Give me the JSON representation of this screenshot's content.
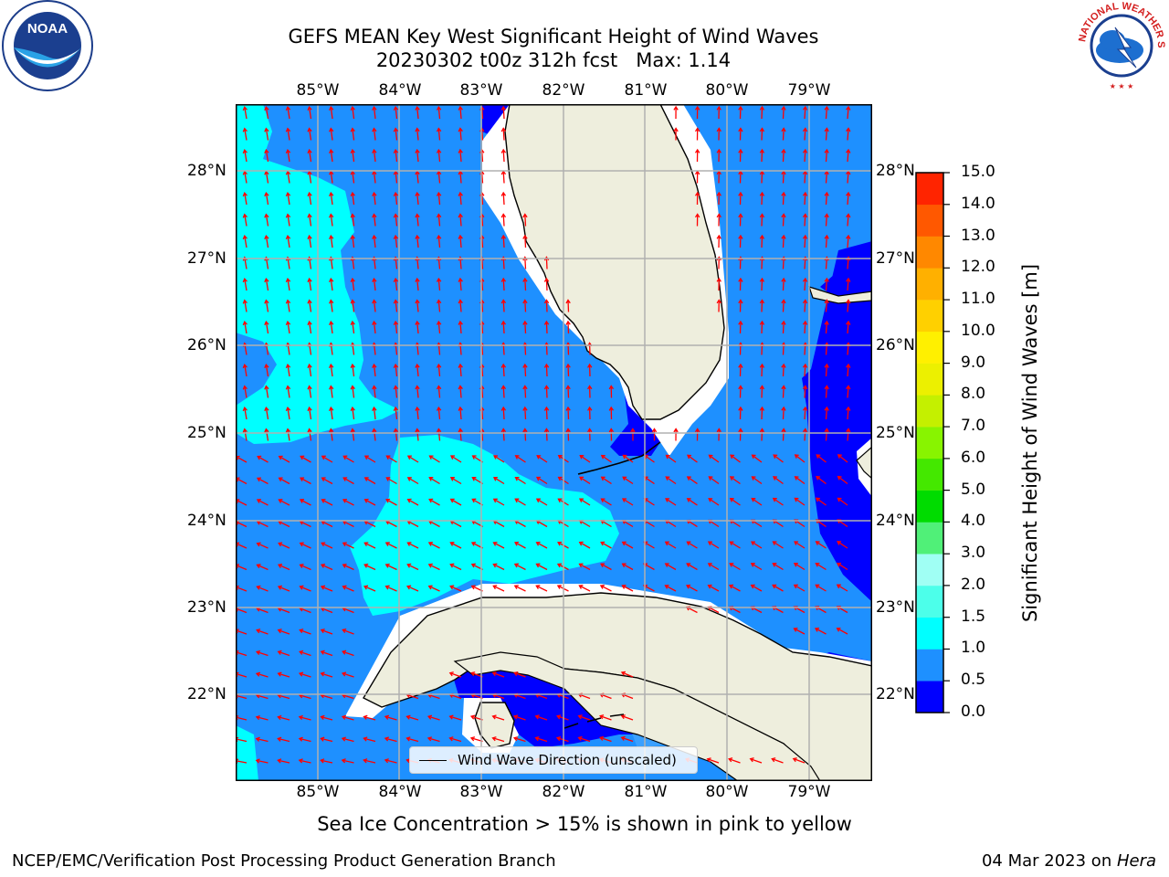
{
  "header": {
    "title_line1": "GEFS MEAN Key West Significant Height of Wind Waves",
    "title_line2": "20230302 t00z 312h fcst   Max: 1.14"
  },
  "map": {
    "lon_labels": [
      "85°W",
      "84°W",
      "83°W",
      "82°W",
      "81°W",
      "80°W",
      "79°W"
    ],
    "lat_labels": [
      "28°N",
      "27°N",
      "26°N",
      "25°N",
      "24°N",
      "23°N",
      "22°N"
    ],
    "legend_label": "Wind Wave Direction (unscaled)",
    "colors": {
      "land": "#eeeedd",
      "band_0_0_5": "#0000ff",
      "band_0_5_1_0": "#1e90ff",
      "band_1_0_1_5": "#00ffff",
      "arrow": "#ff0000",
      "grid": "#b0b0b0"
    }
  },
  "colorbar": {
    "label": "Significant Height of Wind Waves [m]",
    "ticks": [
      "0.0",
      "0.5",
      "1.0",
      "1.5",
      "2.0",
      "3.0",
      "4.0",
      "5.0",
      "6.0",
      "7.0",
      "8.0",
      "9.0",
      "10.0",
      "11.0",
      "12.0",
      "13.0",
      "14.0",
      "15.0"
    ],
    "colors": [
      "#0000ff",
      "#1e90ff",
      "#00ffff",
      "#4cffea",
      "#a0fff4",
      "#50f078",
      "#00dc00",
      "#44e800",
      "#88f400",
      "#c4f000",
      "#ecf000",
      "#fff000",
      "#ffd000",
      "#ffb000",
      "#ff8800",
      "#ff5800",
      "#ff2400"
    ]
  },
  "note": "Sea Ice Concentration > 15% is shown in pink to yellow",
  "footer": {
    "left": "NCEP/EMC/Verification Post Processing Product Generation Branch",
    "right_date": "04 Mar 2023 on ",
    "right_machine": "Hera"
  },
  "logos": {
    "noaa_text": "NOAA",
    "nws_text": "NATIONAL WEATHER SERVICE"
  }
}
